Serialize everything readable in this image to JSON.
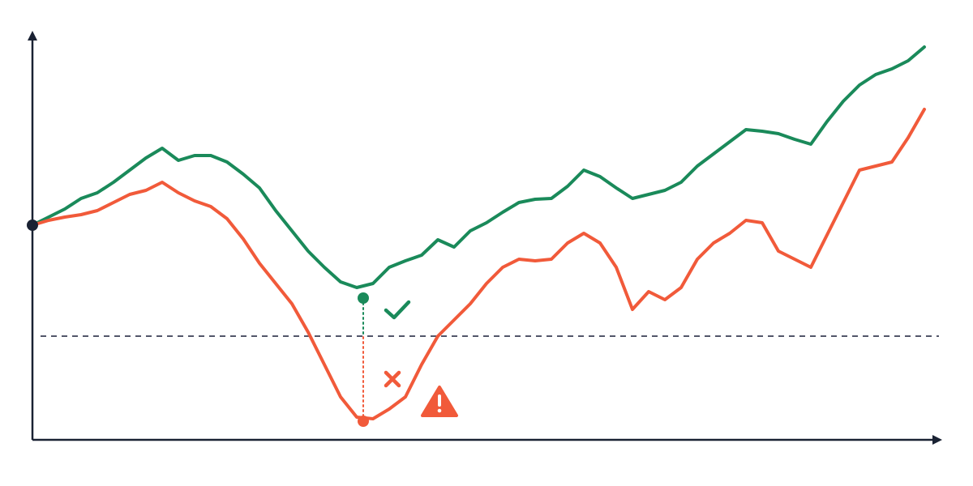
{
  "chart_data": {
    "type": "line",
    "xlim": [
      0,
      1120
    ],
    "ylim": [
      0,
      500
    ],
    "x": [
      0,
      20,
      40,
      60,
      80,
      100,
      120,
      140,
      160,
      180,
      200,
      220,
      240,
      260,
      280,
      300,
      320,
      340,
      360,
      380,
      400,
      420,
      440,
      460,
      480,
      500,
      520,
      540,
      560,
      580,
      600,
      620,
      640,
      660,
      680,
      700,
      720,
      740,
      760,
      780,
      800,
      820,
      840,
      860,
      880,
      900,
      920,
      940,
      960,
      980,
      1000,
      1020,
      1040,
      1060,
      1080,
      1100
    ],
    "series": [
      {
        "color": "#1a8a5a",
        "values": [
          265,
          275,
          285,
          298,
          305,
          318,
          333,
          348,
          360,
          345,
          351,
          351,
          343,
          328,
          311,
          283,
          258,
          233,
          213,
          195,
          188,
          193,
          213,
          221,
          228,
          247,
          238,
          258,
          268,
          281,
          293,
          297,
          298,
          313,
          333,
          325,
          311,
          298,
          303,
          308,
          318,
          338,
          353,
          368,
          383,
          381,
          378,
          371,
          365,
          393,
          418,
          438,
          451,
          458,
          468,
          485
        ]
      },
      {
        "color": "#f15a3a",
        "values": [
          265,
          271,
          275,
          278,
          283,
          293,
          303,
          308,
          318,
          305,
          295,
          288,
          273,
          248,
          218,
          193,
          168,
          133,
          93,
          53,
          28,
          26,
          38,
          53,
          93,
          128,
          148,
          168,
          193,
          213,
          223,
          221,
          223,
          243,
          255,
          243,
          213,
          161,
          183,
          173,
          188,
          223,
          243,
          255,
          271,
          268,
          233,
          223,
          213,
          253,
          293,
          333,
          338,
          343,
          373,
          408
        ]
      }
    ],
    "threshold": 128,
    "points": [
      {
        "x": 0,
        "y": 265,
        "color": "#1a2233"
      },
      {
        "x": 408,
        "y": 175,
        "color": "#1a8a5a"
      },
      {
        "x": 408,
        "y": 23,
        "color": "#f15a3a"
      }
    ]
  }
}
